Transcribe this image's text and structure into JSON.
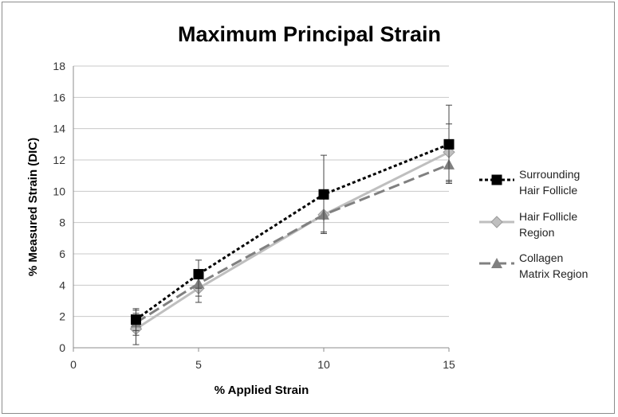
{
  "chart_data": {
    "type": "line",
    "title": "Maximum Principal Strain",
    "xlabel": "% Applied Strain",
    "ylabel": "% Measured Strain (DIC)",
    "xlim": [
      0,
      15
    ],
    "ylim": [
      0,
      18
    ],
    "xticks": [
      0,
      5,
      10,
      15
    ],
    "yticks": [
      0,
      2,
      4,
      6,
      8,
      10,
      12,
      14,
      16,
      18
    ],
    "grid": "horizontal",
    "legend_position": "right",
    "x": [
      2.5,
      5,
      10,
      15
    ],
    "series": [
      {
        "name_lines": [
          "Surrounding",
          "Hair Follicle"
        ],
        "values": [
          1.8,
          4.7,
          9.8,
          13.0
        ],
        "errors": [
          0.7,
          0.9,
          2.5,
          2.5
        ],
        "color": "#000000",
        "marker": "square",
        "dash": "4,3",
        "width": 3
      },
      {
        "name_lines": [
          "Hair Follicle",
          "Region"
        ],
        "values": [
          1.2,
          3.8,
          8.5,
          12.5
        ],
        "errors": [
          1.0,
          0.9,
          1.2,
          1.8
        ],
        "color": "#bfbfbf",
        "marker": "diamond",
        "dash": "",
        "width": 3
      },
      {
        "name_lines": [
          "Collagen",
          "Matrix Region"
        ],
        "values": [
          1.6,
          4.1,
          8.5,
          11.7
        ],
        "errors": [
          0.8,
          0.8,
          1.1,
          1.1
        ],
        "color": "#808080",
        "marker": "triangle",
        "dash": "14,6",
        "width": 3
      }
    ]
  }
}
